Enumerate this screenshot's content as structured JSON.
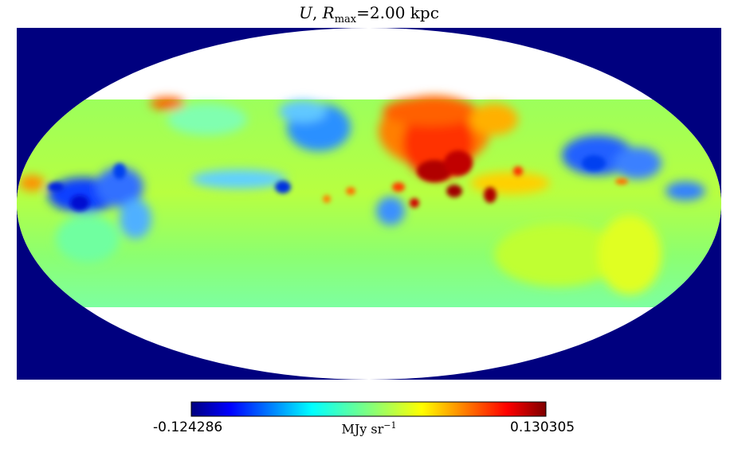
{
  "title": {
    "symbol": "U",
    "sep": ", ",
    "r_symbol": "R",
    "r_sub": "max",
    "r_value": "=2.00 kpc"
  },
  "colorbar": {
    "min_label": "-0.124286",
    "max_label": "0.130305",
    "unit_main": "MJy sr",
    "unit_exp": "−1",
    "colormap": "jet"
  },
  "colors": {
    "background": "#00007f",
    "mask": "#ffffff",
    "jet": [
      "#00007f",
      "#0000ff",
      "#007fff",
      "#00ffff",
      "#7fff7f",
      "#ffff00",
      "#ff7f00",
      "#ff0000",
      "#7f0000"
    ]
  }
}
